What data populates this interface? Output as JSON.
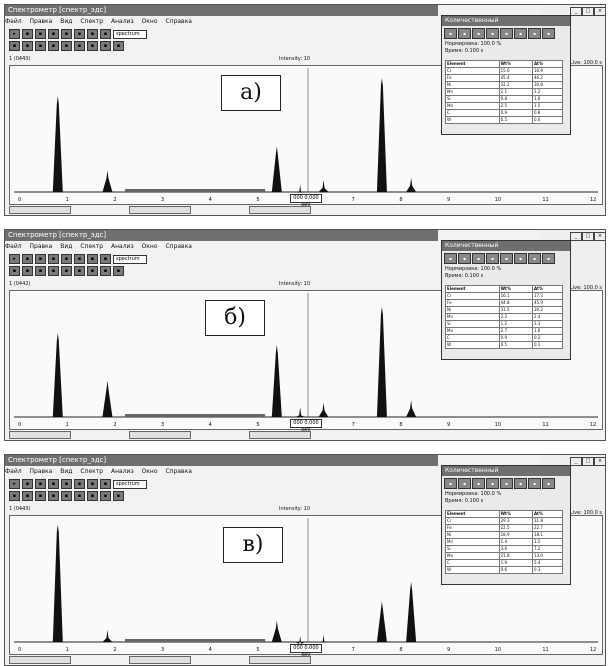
{
  "window": {
    "title": "Спектрометр [спектр_эдс]",
    "menu": [
      "Файл",
      "Правка",
      "Вид",
      "Спектр",
      "Анализ",
      "Окно",
      "Справка"
    ],
    "toolbar_row1": [
      "▸",
      "▪",
      "▪",
      "▪",
      "▪",
      "▪",
      "▪",
      "▪",
      "▪",
      "▪",
      "▪"
    ],
    "toolbar_row2": [
      "▪",
      "▪",
      "▪",
      "▪",
      "▪",
      "▪",
      "▪",
      "▪",
      "▪",
      "▪",
      "▪"
    ],
    "dropdown_value": "spectrum"
  },
  "panels": [
    {
      "label": "а)",
      "file": "1 (0443)",
      "cursor": "Intensity: 10",
      "right_label": "Live: 100.0 s",
      "kev": "000 0.000 keV",
      "table": [
        [
          "Element",
          "Wt%",
          "At%"
        ],
        [
          "Cr",
          "15.6",
          "16.9"
        ],
        [
          "Fe",
          "45.4",
          "46.2"
        ],
        [
          "Ni",
          "32.2",
          "30.8"
        ],
        [
          "Mn",
          "2.1",
          "2.2"
        ],
        [
          "Si",
          "0.8",
          "1.6"
        ],
        [
          "Mo",
          "2.5",
          "1.5"
        ],
        [
          "C",
          "0.9",
          "0.8"
        ],
        [
          "W",
          "0.5",
          "0.0"
        ]
      ]
    },
    {
      "label": "б)",
      "file": "1 (0442)",
      "cursor": "Intensity: 10",
      "right_label": "Live: 100.0 s",
      "kev": "000 0.000 keV",
      "table": [
        [
          "Element",
          "Wt%",
          "At%"
        ],
        [
          "Cr",
          "16.1",
          "17.3"
        ],
        [
          "Fe",
          "44.8",
          "45.9"
        ],
        [
          "Ni",
          "31.5",
          "30.2"
        ],
        [
          "Mn",
          "2.3",
          "2.4"
        ],
        [
          "Si",
          "1.2",
          "2.3"
        ],
        [
          "Mo",
          "2.7",
          "1.6"
        ],
        [
          "C",
          "0.9",
          "0.2"
        ],
        [
          "W",
          "0.5",
          "0.1"
        ]
      ]
    },
    {
      "label": "в)",
      "file": "1 (0443)",
      "cursor": "Intensity: 10",
      "right_label": "Live: 100.0 s",
      "kev": "000 0.000 keV",
      "table": [
        [
          "Element",
          "Wt%",
          "At%"
        ],
        [
          "Cr",
          "29.3",
          "31.8"
        ],
        [
          "Fe",
          "22.5",
          "22.7"
        ],
        [
          "Ni",
          "18.9",
          "18.1"
        ],
        [
          "Mn",
          "1.4",
          "1.5"
        ],
        [
          "Si",
          "3.6",
          "7.2"
        ],
        [
          "Mo",
          "21.8",
          "13.0"
        ],
        [
          "C",
          "1.9",
          "5.4"
        ],
        [
          "W",
          "0.6",
          "0.3"
        ]
      ]
    }
  ],
  "quant_window": {
    "title": "Количественный",
    "info_line1": "Нормировка: 100.0 %",
    "info_line2": "Время: 0.100 s"
  },
  "x_ticks": [
    "0",
    "1",
    "2",
    "3",
    "4",
    "5",
    "6",
    "7",
    "8",
    "9",
    "10",
    "11",
    "12"
  ],
  "colors": {
    "frame": "#555555",
    "spectrum_fill": "#111111",
    "background": "#f2f2f2"
  }
}
